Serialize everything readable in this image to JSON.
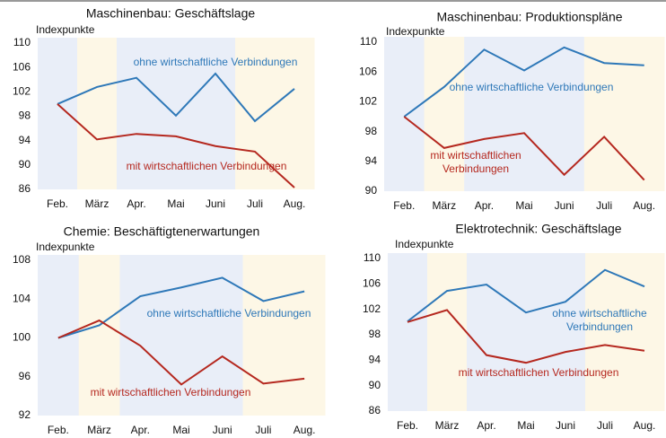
{
  "chart_data": [
    {
      "type": "line",
      "title": "Maschinenbau: Geschäftslage",
      "y_label": "Indexpunkte",
      "categories": [
        "Feb.",
        "März",
        "Apr.",
        "Mai",
        "Juni",
        "Juli",
        "Aug."
      ],
      "background_colors": [
        "#e9eef8",
        "#fdf7e6",
        "#e9eef8",
        "#e9eef8",
        "#e9eef8",
        "#fdf7e6",
        "#fdf7e6"
      ],
      "ylim": [
        86,
        110
      ],
      "yticks": [
        86,
        90,
        94,
        98,
        102,
        106,
        110
      ],
      "series": [
        {
          "name": "ohne wirtschaftliche Verbindungen",
          "color": "#2e78b8",
          "values": [
            100,
            102.8,
            104.3,
            98.1,
            105,
            97.2,
            102.5
          ]
        },
        {
          "name": "mit wirtschaftlichen Verbindungen",
          "color": "#b5281f",
          "values": [
            100,
            94.2,
            95.1,
            94.7,
            93.1,
            92.2,
            86.3
          ]
        }
      ]
    },
    {
      "type": "line",
      "title": "Maschinenbau: Produktionspläne",
      "y_label": "Indexpunkte",
      "categories": [
        "Feb.",
        "März",
        "Apr.",
        "Mai",
        "Juni",
        "Juli",
        "Aug."
      ],
      "background_colors": [
        "#e9eef8",
        "#fdf7e6",
        "#e9eef8",
        "#e9eef8",
        "#e9eef8",
        "#fdf7e6",
        "#fdf7e6"
      ],
      "ylim": [
        90,
        110
      ],
      "yticks": [
        90,
        94,
        98,
        102,
        106,
        110
      ],
      "series": [
        {
          "name": "ohne wirtschaftliche Verbindungen",
          "color": "#2e78b8",
          "values": [
            100,
            104,
            109,
            106.2,
            109.3,
            107.2,
            106.9
          ]
        },
        {
          "name": "mit wirtschaftlichen Verbindungen",
          "color": "#b5281f",
          "values": [
            100,
            95.8,
            97,
            97.8,
            92.2,
            97.3,
            91.5
          ]
        }
      ]
    },
    {
      "type": "line",
      "title": "Chemie: Beschäftigtenerwartungen",
      "y_label": "Indexpunkte",
      "categories": [
        "Feb.",
        "März",
        "Apr.",
        "Mai",
        "Juni",
        "Juli",
        "Aug."
      ],
      "background_colors": [
        "#e9eef8",
        "#fdf7e6",
        "#e9eef8",
        "#e9eef8",
        "#e9eef8",
        "#fdf7e6",
        "#fdf7e6"
      ],
      "ylim": [
        92,
        108
      ],
      "yticks": [
        92,
        96,
        100,
        104,
        108
      ],
      "series": [
        {
          "name": "ohne wirtschaftliche Verbindungen",
          "color": "#2e78b8",
          "values": [
            100,
            101.3,
            104.3,
            105.2,
            106.2,
            103.8,
            104.8
          ]
        },
        {
          "name": "mit wirtschaftlichen Verbindungen",
          "color": "#b5281f",
          "values": [
            100,
            101.8,
            99.2,
            95.2,
            98.1,
            95.3,
            95.8
          ]
        }
      ]
    },
    {
      "type": "line",
      "title": "Elektrotechnik: Geschäftslage",
      "y_label": "Indexpunkte",
      "categories": [
        "Feb.",
        "März",
        "Apr.",
        "Mai",
        "Juni",
        "Juli",
        "Aug."
      ],
      "background_colors": [
        "#e9eef8",
        "#fdf7e6",
        "#e9eef8",
        "#e9eef8",
        "#e9eef8",
        "#fdf7e6",
        "#fdf7e6"
      ],
      "ylim": [
        86,
        110
      ],
      "yticks": [
        86,
        90,
        94,
        98,
        102,
        106,
        110
      ],
      "series": [
        {
          "name": "ohne wirtschaftliche Verbindungen",
          "color": "#2e78b8",
          "values": [
            100.1,
            104.9,
            105.9,
            101.5,
            103.2,
            108.2,
            105.6
          ]
        },
        {
          "name": "mit wirtschaftlichen Verbindungen",
          "color": "#b5281f",
          "values": [
            100,
            101.9,
            94.8,
            93.6,
            95.3,
            96.4,
            95.5
          ]
        }
      ]
    }
  ]
}
